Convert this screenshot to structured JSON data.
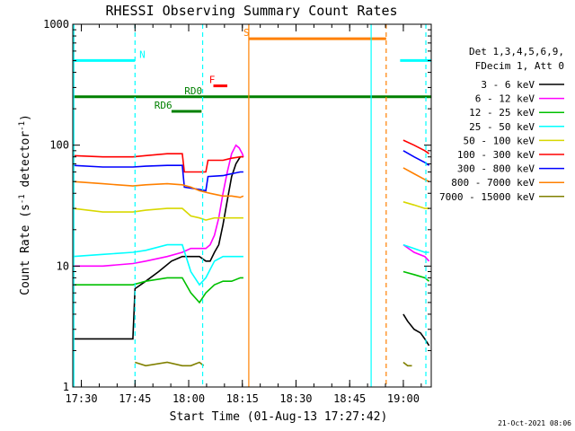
{
  "chart_data": {
    "type": "line",
    "title": "RHESSI Observing Summary Count Rates",
    "xlabel": "Start Time (01-Aug-13 17:27:42)",
    "ylabel_main": "Count Rate (s",
    "ylabel_sup1": "-1",
    "ylabel_mid": " detector",
    "ylabel_sup2": "-1",
    "ylabel_end": ")",
    "y_scale": "log",
    "ylim": [
      1,
      1000
    ],
    "xlim_minutes": [
      17.46,
      19.13
    ],
    "y_ticks": [
      {
        "v": 1,
        "label": "1"
      },
      {
        "v": 10,
        "label": "10"
      },
      {
        "v": 100,
        "label": "100"
      },
      {
        "v": 1000,
        "label": "1000"
      }
    ],
    "x_ticks": [
      {
        "v": 17.5,
        "label": "17:30"
      },
      {
        "v": 17.75,
        "label": "17:45"
      },
      {
        "v": 18.0,
        "label": "18:00"
      },
      {
        "v": 18.25,
        "label": "18:15"
      },
      {
        "v": 18.5,
        "label": "18:30"
      },
      {
        "v": 18.75,
        "label": "18:45"
      },
      {
        "v": 19.0,
        "label": "19:00"
      }
    ],
    "legend_header": [
      "Det 1,3,4,5,6,9,",
      "FDecim 1, Att 0"
    ],
    "series": [
      {
        "name": "3 - 6 keV",
        "color": "#000000",
        "segments": [
          {
            "x": [
              17.46,
              17.6,
              17.74,
              17.75,
              17.8,
              17.86,
              17.92,
              17.97,
              18.01,
              18.05,
              18.08,
              18.1,
              18.12,
              18.14,
              18.16,
              18.18,
              18.2,
              18.22,
              18.24,
              18.255
            ],
            "y": [
              2.5,
              2.5,
              2.5,
              6.5,
              7.5,
              9,
              11,
              12,
              12,
              12,
              11,
              11,
              13,
              15,
              22,
              35,
              55,
              70,
              80,
              80
            ]
          },
          {
            "x": [
              19.0,
              19.02,
              19.05,
              19.08,
              19.1,
              19.12
            ],
            "y": [
              4,
              3.5,
              3,
              2.8,
              2.5,
              2.2
            ]
          }
        ]
      },
      {
        "name": "6 - 12 keV",
        "color": "#ff00ff",
        "segments": [
          {
            "x": [
              17.46,
              17.6,
              17.74,
              17.8,
              17.9,
              17.97,
              18.01,
              18.05,
              18.08,
              18.1,
              18.12,
              18.14,
              18.16,
              18.18,
              18.2,
              18.22,
              18.235,
              18.25,
              18.255
            ],
            "y": [
              10,
              10,
              10.5,
              11,
              12,
              13,
              14,
              14,
              14,
              15,
              18,
              25,
              40,
              60,
              85,
              100,
              95,
              85,
              80
            ]
          },
          {
            "x": [
              19.0,
              19.05,
              19.1,
              19.12
            ],
            "y": [
              15,
              13,
              12,
              11
            ]
          }
        ]
      },
      {
        "name": "12 - 25 keV",
        "color": "#00c000",
        "segments": [
          {
            "x": [
              17.46,
              17.6,
              17.74,
              17.8,
              17.9,
              17.97,
              18.01,
              18.05,
              18.08,
              18.12,
              18.16,
              18.2,
              18.24,
              18.255
            ],
            "y": [
              7,
              7,
              7,
              7.5,
              8,
              8,
              6,
              5,
              6,
              7,
              7.5,
              7.5,
              8,
              8
            ]
          },
          {
            "x": [
              19.0,
              19.05,
              19.1,
              19.12
            ],
            "y": [
              9,
              8.5,
              8,
              7.5
            ]
          }
        ]
      },
      {
        "name": "25 - 50 keV",
        "color": "#00ffff",
        "segments": [
          {
            "x": [
              17.46,
              17.6,
              17.74,
              17.8,
              17.9,
              17.97,
              18.01,
              18.05,
              18.08,
              18.12,
              18.16,
              18.2,
              18.24,
              18.255
            ],
            "y": [
              12,
              12.5,
              13,
              13.5,
              15,
              15,
              9,
              7,
              8,
              11,
              12,
              12,
              12,
              12
            ]
          },
          {
            "x": [
              19.0,
              19.05,
              19.1,
              19.12
            ],
            "y": [
              15,
              14,
              13,
              13
            ]
          }
        ]
      },
      {
        "name": "50 - 100 keV",
        "color": "#d8d800",
        "segments": [
          {
            "x": [
              17.46,
              17.6,
              17.74,
              17.8,
              17.9,
              17.97,
              18.01,
              18.05,
              18.08,
              18.12,
              18.16,
              18.2,
              18.24,
              18.255
            ],
            "y": [
              30,
              28,
              28,
              29,
              30,
              30,
              26,
              25,
              24,
              25,
              25,
              25,
              25,
              25
            ]
          },
          {
            "x": [
              19.0,
              19.05,
              19.1,
              19.12
            ],
            "y": [
              34,
              32,
              30,
              30
            ]
          }
        ]
      },
      {
        "name": "100 - 300 keV",
        "color": "#ff0000",
        "segments": [
          {
            "x": [
              17.46,
              17.6,
              17.74,
              17.8,
              17.9,
              17.97,
              17.98,
              18.05,
              18.08,
              18.09,
              18.16,
              18.2,
              18.24,
              18.255
            ],
            "y": [
              82,
              80,
              80,
              82,
              85,
              85,
              60,
              60,
              60,
              75,
              75,
              78,
              80,
              80
            ]
          },
          {
            "x": [
              19.0,
              19.05,
              19.1,
              19.12
            ],
            "y": [
              110,
              100,
              90,
              85
            ]
          }
        ]
      },
      {
        "name": "300 - 800 keV",
        "color": "#0000ff",
        "segments": [
          {
            "x": [
              17.46,
              17.6,
              17.74,
              17.8,
              17.9,
              17.97,
              17.98,
              18.05,
              18.08,
              18.09,
              18.16,
              18.2,
              18.24,
              18.255
            ],
            "y": [
              68,
              66,
              66,
              67,
              68,
              68,
              45,
              43,
              42,
              55,
              56,
              58,
              60,
              60
            ]
          },
          {
            "x": [
              19.0,
              19.05,
              19.1,
              19.12
            ],
            "y": [
              90,
              80,
              72,
              68
            ]
          }
        ]
      },
      {
        "name": "800 - 7000 keV",
        "color": "#ff8000",
        "segments": [
          {
            "x": [
              17.46,
              17.6,
              17.74,
              17.8,
              17.9,
              17.97,
              18.01,
              18.05,
              18.1,
              18.16,
              18.2,
              18.24,
              18.255
            ],
            "y": [
              50,
              48,
              46,
              47,
              48,
              47,
              45,
              42,
              40,
              38,
              38,
              37,
              38
            ]
          },
          {
            "x": [
              19.0,
              19.05,
              19.1,
              19.12
            ],
            "y": [
              65,
              58,
              52,
              50
            ]
          }
        ]
      },
      {
        "name": "7000 - 15000 keV",
        "color": "#808000",
        "segments": [
          {
            "x": [
              17.75,
              17.8,
              17.9,
              17.97,
              18.01,
              18.05,
              18.07
            ],
            "y": [
              1.6,
              1.5,
              1.6,
              1.5,
              1.5,
              1.6,
              1.5
            ]
          },
          {
            "x": [
              19.0,
              19.02,
              19.04
            ],
            "y": [
              1.6,
              1.5,
              1.5
            ]
          }
        ]
      }
    ],
    "flags": [
      {
        "label": "N",
        "color": "#00ffff",
        "y_level": 0.1,
        "ranges": [
          [
            17.46,
            17.75
          ],
          [
            18.985,
            19.13
          ]
        ],
        "label_at": 17.77
      },
      {
        "label": "S",
        "color": "#ff8000",
        "y_level": 0.04,
        "ranges": [
          [
            18.28,
            18.92
          ]
        ],
        "label_at": 18.255
      },
      {
        "label": "F",
        "color": "#ff0000",
        "y_level": 0.17,
        "ranges": [
          [
            18.115,
            18.18
          ]
        ],
        "label_at": 18.095
      },
      {
        "label": "RD0",
        "color": "#008000",
        "y_level": 0.2,
        "ranges": [
          [
            17.46,
            19.13
          ]
        ],
        "label_at": 17.98
      },
      {
        "label": "RD6",
        "color": "#008000",
        "y_level": 0.24,
        "ranges": [
          [
            17.92,
            18.06
          ]
        ],
        "label_at": 17.84
      }
    ],
    "vlines": [
      {
        "x": 17.465,
        "color": "#00ffff",
        "style": "solid"
      },
      {
        "x": 17.75,
        "color": "#00ffff",
        "style": "dashed"
      },
      {
        "x": 18.065,
        "color": "#00ffff",
        "style": "dashed"
      },
      {
        "x": 18.28,
        "color": "#ff8000",
        "style": "solid"
      },
      {
        "x": 18.85,
        "color": "#00ffff",
        "style": "solid"
      },
      {
        "x": 18.92,
        "color": "#ff8000",
        "style": "dashed"
      },
      {
        "x": 19.105,
        "color": "#00ffff",
        "style": "dashed"
      }
    ]
  },
  "timestamp": "21-Oct-2021 08:06",
  "colors": {
    "frame": "#000000",
    "background": "#ffffff"
  }
}
